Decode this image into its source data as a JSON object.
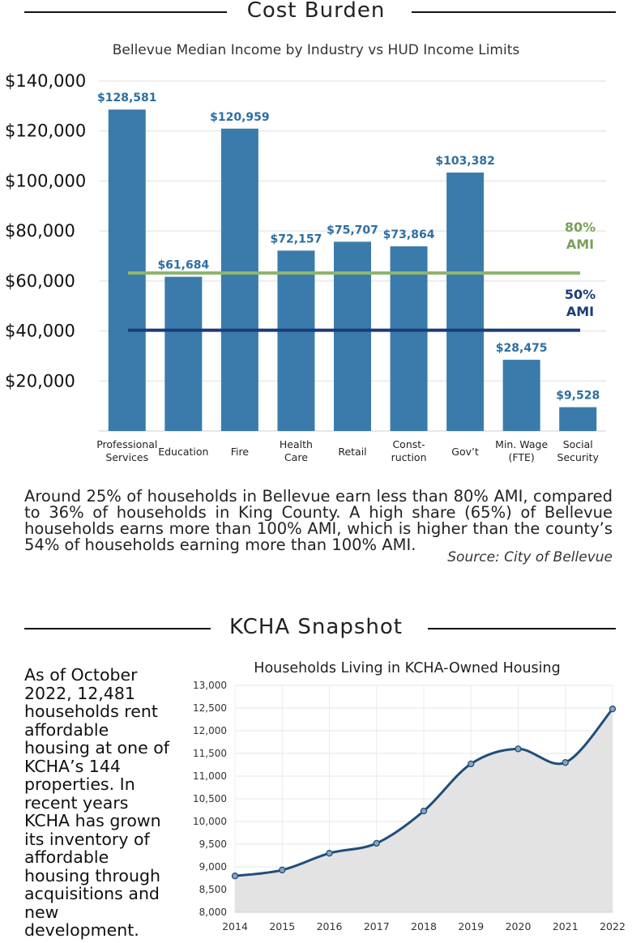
{
  "sections": {
    "cost_burden": {
      "title": "Cost Burden"
    },
    "kcha": {
      "title": "KCHA Snapshot"
    }
  },
  "cost_burden": {
    "paragraph": "Around 25% of households in Bellevue earn less than 80% AMI, compared to 36% of households in King County. A high share (65%) of Bellevue households earns more than 100% AMI, which is higher than the county’s 54% of households earning more than 100% AMI.",
    "source": "Source: City of Bellevue"
  },
  "kcha": {
    "text": "As of October 2022, 12,481 households rent affordable housing at one of KCHA’s 144 properties. In recent years KCHA has grown its inventory of affordable housing through acquisitions and new development."
  },
  "colors": {
    "bar": "#3a7bab",
    "bar_label": "#2d6ea1",
    "ami80": "#8db56f",
    "ami80_label": "#7aa05c",
    "ami50": "#1d3b7a",
    "area_fill": "#e3e3e3",
    "line": "#1f4e79"
  },
  "chart_data": [
    {
      "type": "bar",
      "title": "Bellevue Median Income by Industry vs HUD Income Limits",
      "categories": [
        [
          "Professional",
          "Services"
        ],
        [
          "Education"
        ],
        [
          "Fire"
        ],
        [
          "Health",
          "Care"
        ],
        [
          "Retail"
        ],
        [
          "Const-",
          "ruction"
        ],
        [
          "Gov’t"
        ],
        [
          "Min. Wage",
          "(FTE)"
        ],
        [
          "Social",
          "Security"
        ]
      ],
      "values": [
        128581,
        61684,
        120959,
        72157,
        75707,
        73864,
        103382,
        28475,
        9528
      ],
      "value_labels": [
        "$128,581",
        "$61,684",
        "$120,959",
        "$72,157",
        "$75,707",
        "$73,864",
        "$103,382",
        "$28,475",
        "$9,528"
      ],
      "yticks": [
        20000,
        40000,
        60000,
        80000,
        100000,
        120000,
        140000
      ],
      "ytick_labels": [
        "$20,000",
        "$40,000",
        "$60,000",
        "$80,000",
        "$100,000",
        "$120,000",
        "$140,000"
      ],
      "ylim": [
        0,
        140000
      ],
      "grid": true,
      "reference_lines": [
        {
          "label": [
            "80%",
            "AMI"
          ],
          "value": 63200
        },
        {
          "label": [
            "50%",
            "AMI"
          ],
          "value": 40300
        }
      ]
    },
    {
      "type": "area",
      "title": "Households Living in KCHA-Owned Housing",
      "x": [
        "2014",
        "2015",
        "2016",
        "2017",
        "2018",
        "2019",
        "2020",
        "2021",
        "2022"
      ],
      "values": [
        8800,
        8930,
        9300,
        9520,
        10230,
        11270,
        11600,
        11300,
        12481
      ],
      "yticks": [
        8000,
        8500,
        9000,
        9500,
        10000,
        10500,
        11000,
        11500,
        12000,
        12500,
        13000
      ],
      "ytick_labels": [
        "8,000",
        "8,500",
        "9,000",
        "9,500",
        "10,000",
        "10,500",
        "11,000",
        "11,500",
        "12,000",
        "12,500",
        "13,000"
      ],
      "ylim": [
        8000,
        13000
      ],
      "grid": true
    }
  ]
}
